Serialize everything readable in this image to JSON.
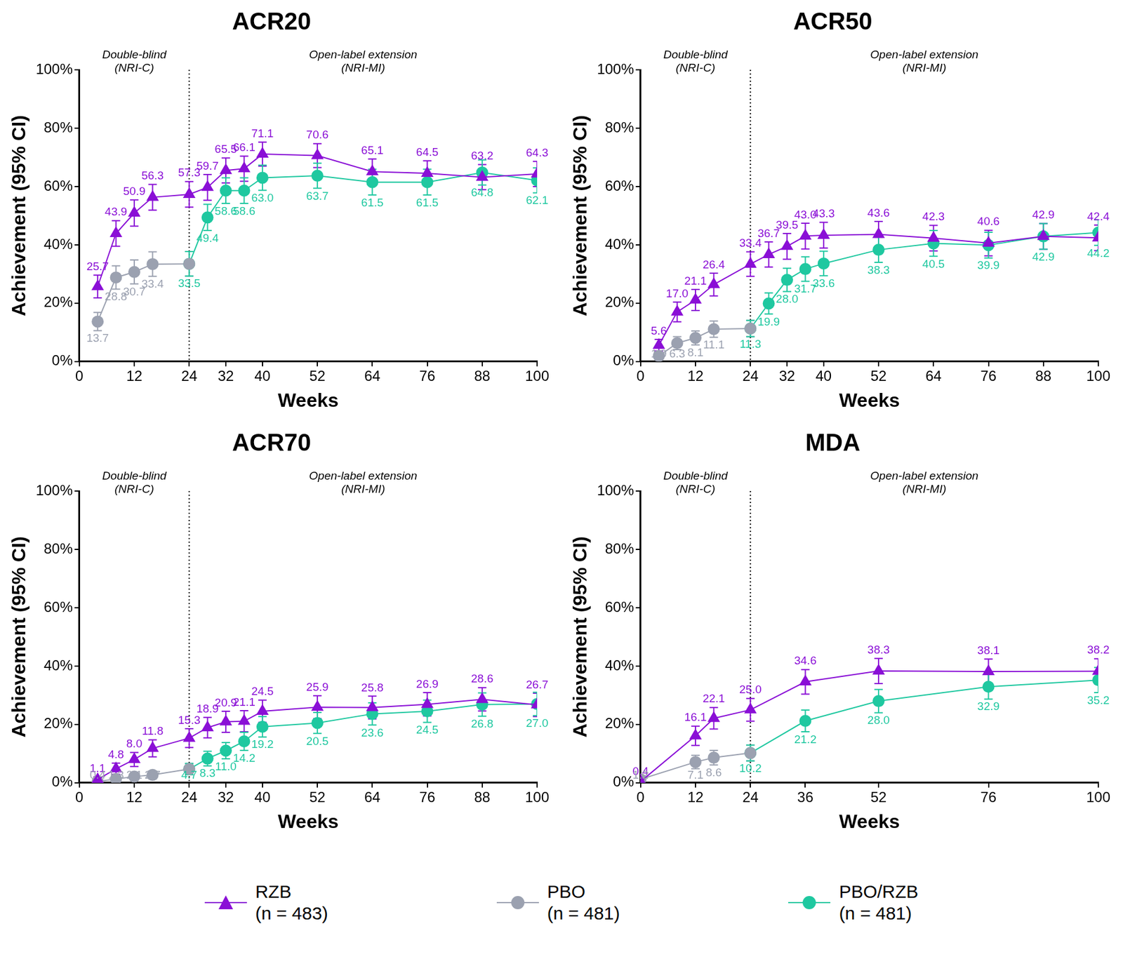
{
  "chart_data": [
    {
      "type": "line",
      "title": "ACR20",
      "x_label": "Weeks",
      "y_label": "Achievement (95% CI)",
      "xlim": [
        0,
        100
      ],
      "xticks": [
        0,
        12,
        24,
        32,
        40,
        52,
        64,
        76,
        88,
        100
      ],
      "ylim": [
        0,
        100
      ],
      "yticks": [
        {
          "value": 0,
          "label": "0%"
        },
        {
          "value": 20,
          "label": "20%"
        },
        {
          "value": 40,
          "label": "40%"
        },
        {
          "value": 60,
          "label": "60%"
        },
        {
          "value": 80,
          "label": "80%"
        },
        {
          "value": 100,
          "label": "100%"
        }
      ],
      "grid": false,
      "data_labels": true,
      "legend": "bottom",
      "divider": 24,
      "annotations": [
        {
          "text": "Double-blind",
          "subtext": "(NRI-C)"
        },
        {
          "text": "Open-label extension",
          "subtext": "(NRI-MI)"
        }
      ],
      "x": [
        4,
        8,
        12,
        16,
        24,
        28,
        32,
        36,
        40,
        52,
        64,
        76,
        88,
        100
      ],
      "series": [
        {
          "name": "RZB",
          "note": "(n = 483)",
          "color": "#8a0fd6",
          "marker": "triangle",
          "line_style": "solid",
          "values": [
            25.7,
            43.9,
            50.9,
            56.3,
            57.3,
            59.7,
            65.5,
            66.1,
            71.1,
            70.6,
            65.1,
            64.5,
            63.2,
            64.3
          ],
          "value_labels": [
            "25.7",
            "43.9",
            "50.9",
            "56.3",
            "57.3",
            "59.7",
            "65.5",
            "66.1",
            "71.1",
            "70.6",
            "65.1",
            "64.5",
            "63.2",
            "64.3"
          ],
          "errors": [
            3.9,
            4.4,
            4.5,
            4.4,
            4.4,
            4.4,
            4.3,
            4.3,
            4.1,
            4.1,
            4.3,
            4.3,
            4.3,
            4.3
          ]
        },
        {
          "name": "PBO",
          "note": "(n = 481)",
          "color": "#9ba1b0",
          "marker": "circle",
          "line_style": "solid",
          "values": [
            13.7,
            28.8,
            30.7,
            33.4,
            33.5,
            null,
            null,
            null,
            null,
            null,
            null,
            null,
            null,
            null
          ],
          "value_labels": [
            "13.7",
            "28.8",
            "30.7",
            "33.4",
            null,
            null,
            null,
            null,
            null,
            null,
            null,
            null,
            null,
            null
          ],
          "errors": [
            3.1,
            4.0,
            4.1,
            4.2,
            4.2,
            null,
            null,
            null,
            null,
            null,
            null,
            null,
            null,
            null
          ]
        },
        {
          "name": "PBO/RZB",
          "note": "(n = 481)",
          "color": "#1fc8a0",
          "marker": "circle",
          "line_style": "solid",
          "values": [
            null,
            null,
            null,
            null,
            33.5,
            49.4,
            58.6,
            58.6,
            63.0,
            63.7,
            61.5,
            61.5,
            64.8,
            62.1
          ],
          "value_labels": [
            null,
            null,
            null,
            null,
            "33.5",
            "49.4",
            "58.6",
            "58.6",
            "63.0",
            "63.7",
            "61.5",
            "61.5",
            "64.8",
            "62.1"
          ],
          "errors": [
            null,
            null,
            null,
            null,
            4.2,
            4.5,
            4.4,
            4.4,
            4.3,
            4.3,
            4.4,
            4.4,
            4.3,
            4.3
          ]
        }
      ]
    },
    {
      "type": "line",
      "title": "ACR50",
      "x_label": "Weeks",
      "y_label": "Achievement (95% CI)",
      "xlim": [
        0,
        100
      ],
      "xticks": [
        0,
        12,
        24,
        32,
        40,
        52,
        64,
        76,
        88,
        100
      ],
      "ylim": [
        0,
        100
      ],
      "yticks": [
        {
          "value": 0,
          "label": "0%"
        },
        {
          "value": 20,
          "label": "20%"
        },
        {
          "value": 40,
          "label": "40%"
        },
        {
          "value": 60,
          "label": "60%"
        },
        {
          "value": 80,
          "label": "80%"
        },
        {
          "value": 100,
          "label": "100%"
        }
      ],
      "grid": false,
      "data_labels": true,
      "legend": "bottom",
      "divider": 24,
      "annotations": [
        {
          "text": "Double-blind",
          "subtext": "(NRI-C)"
        },
        {
          "text": "Open-label extension",
          "subtext": "(NRI-MI)"
        }
      ],
      "x": [
        4,
        8,
        12,
        16,
        24,
        28,
        32,
        36,
        40,
        52,
        64,
        76,
        88,
        100
      ],
      "series": [
        {
          "name": "RZB",
          "note": "(n = 483)",
          "color": "#8a0fd6",
          "marker": "triangle",
          "line_style": "solid",
          "values": [
            5.6,
            17.0,
            21.1,
            26.4,
            33.4,
            36.7,
            39.5,
            43.0,
            43.3,
            43.6,
            42.3,
            40.6,
            42.9,
            42.4
          ],
          "value_labels": [
            "5.6",
            "17.0",
            "21.1",
            "26.4",
            "33.4",
            "36.7",
            "39.5",
            "43.0",
            "43.3",
            "43.6",
            "42.3",
            "40.6",
            "42.9",
            "42.4"
          ],
          "errors": [
            2.0,
            3.4,
            3.6,
            3.9,
            4.2,
            4.3,
            4.4,
            4.4,
            4.4,
            4.4,
            4.4,
            4.4,
            4.4,
            4.4
          ]
        },
        {
          "name": "PBO",
          "note": "(n = 481)",
          "color": "#9ba1b0",
          "marker": "circle",
          "line_style": "solid",
          "values": [
            1.9,
            6.3,
            8.1,
            11.1,
            11.3,
            null,
            null,
            null,
            null,
            null,
            null,
            null,
            null,
            null
          ],
          "value_labels": [
            "1.9",
            "6.3",
            "8.1",
            "11.1",
            null,
            null,
            null,
            null,
            null,
            null,
            null,
            null,
            null,
            null
          ],
          "errors": [
            1.2,
            2.2,
            2.4,
            2.8,
            2.8,
            null,
            null,
            null,
            null,
            null,
            null,
            null,
            null,
            null
          ]
        },
        {
          "name": "PBO/RZB",
          "note": "(n = 481)",
          "color": "#1fc8a0",
          "marker": "circle",
          "line_style": "solid",
          "values": [
            null,
            null,
            null,
            null,
            11.3,
            19.9,
            28.0,
            31.7,
            33.6,
            38.3,
            40.5,
            39.9,
            42.9,
            44.2
          ],
          "value_labels": [
            null,
            null,
            null,
            null,
            "11.3",
            "19.9",
            "28.0",
            "31.7",
            "33.6",
            "38.3",
            "40.5",
            "39.9",
            "42.9",
            "44.2"
          ],
          "errors": [
            null,
            null,
            null,
            null,
            2.8,
            3.6,
            4.0,
            4.2,
            4.2,
            4.3,
            4.4,
            4.4,
            4.4,
            4.4
          ]
        }
      ]
    },
    {
      "type": "line",
      "title": "ACR70",
      "x_label": "Weeks",
      "y_label": "Achievement (95% CI)",
      "xlim": [
        0,
        100
      ],
      "xticks": [
        0,
        12,
        24,
        32,
        40,
        52,
        64,
        76,
        88,
        100
      ],
      "ylim": [
        0,
        100
      ],
      "yticks": [
        {
          "value": 0,
          "label": "0%"
        },
        {
          "value": 20,
          "label": "20%"
        },
        {
          "value": 40,
          "label": "40%"
        },
        {
          "value": 60,
          "label": "60%"
        },
        {
          "value": 80,
          "label": "80%"
        },
        {
          "value": 100,
          "label": "100%"
        }
      ],
      "grid": false,
      "data_labels": true,
      "legend": "bottom",
      "divider": 24,
      "annotations": [
        {
          "text": "Double-blind",
          "subtext": "(NRI-C)"
        },
        {
          "text": "Open-label extension",
          "subtext": "(NRI-MI)"
        }
      ],
      "x": [
        4,
        8,
        12,
        16,
        24,
        28,
        32,
        36,
        40,
        52,
        64,
        76,
        88,
        100
      ],
      "series": [
        {
          "name": "RZB",
          "note": "(n = 483)",
          "color": "#8a0fd6",
          "marker": "triangle",
          "line_style": "solid",
          "values": [
            1.1,
            4.8,
            8.0,
            11.8,
            15.3,
            18.9,
            20.9,
            21.1,
            24.5,
            25.9,
            25.8,
            26.9,
            28.6,
            26.7
          ],
          "value_labels": [
            "1.1",
            "4.8",
            "8.0",
            "11.8",
            "15.3",
            "18.9",
            "20.9",
            "21.1",
            "24.5",
            "25.9",
            "25.8",
            "26.9",
            "28.6",
            "26.7"
          ],
          "errors": [
            0.9,
            1.9,
            2.4,
            2.9,
            3.2,
            3.5,
            3.6,
            3.6,
            3.8,
            3.9,
            3.9,
            4.0,
            4.0,
            4.0
          ]
        },
        {
          "name": "PBO",
          "note": "(n = 481)",
          "color": "#9ba1b0",
          "marker": "circle",
          "line_style": "solid",
          "values": [
            0.4,
            1.3,
            2.1,
            2.7,
            4.7,
            null,
            null,
            null,
            null,
            null,
            null,
            null,
            null,
            null
          ],
          "value_labels": [
            "0.4",
            "1.3",
            "2.1",
            "2.7",
            null,
            null,
            null,
            null,
            null,
            null,
            null,
            null,
            null,
            null
          ],
          "errors": [
            0.6,
            1.0,
            1.3,
            1.4,
            1.9,
            null,
            null,
            null,
            null,
            null,
            null,
            null,
            null,
            null
          ]
        },
        {
          "name": "PBO/RZB",
          "note": "(n = 481)",
          "color": "#1fc8a0",
          "marker": "circle",
          "line_style": "solid",
          "values": [
            null,
            null,
            null,
            null,
            4.7,
            8.3,
            11.0,
            14.2,
            19.2,
            20.5,
            23.6,
            24.5,
            26.8,
            27.0
          ],
          "value_labels": [
            null,
            null,
            null,
            null,
            "4.7",
            "8.3",
            "11.0",
            "14.2",
            "19.2",
            "20.5",
            "23.6",
            "24.5",
            "26.8",
            "27.0"
          ],
          "errors": [
            null,
            null,
            null,
            null,
            1.9,
            2.5,
            2.8,
            3.1,
            3.5,
            3.6,
            3.8,
            3.8,
            4.0,
            4.0
          ]
        }
      ]
    },
    {
      "type": "line",
      "title": "MDA",
      "x_label": "Weeks",
      "y_label": "Achievement (95% CI)",
      "xlim": [
        0,
        100
      ],
      "xticks": [
        0,
        12,
        24,
        36,
        52,
        76,
        100
      ],
      "ylim": [
        0,
        100
      ],
      "yticks": [
        {
          "value": 0,
          "label": "0%"
        },
        {
          "value": 20,
          "label": "20%"
        },
        {
          "value": 40,
          "label": "40%"
        },
        {
          "value": 60,
          "label": "60%"
        },
        {
          "value": 80,
          "label": "80%"
        },
        {
          "value": 100,
          "label": "100%"
        }
      ],
      "grid": false,
      "data_labels": true,
      "legend": "bottom",
      "divider": 24,
      "annotations": [
        {
          "text": "Double-blind",
          "subtext": "(NRI-C)"
        },
        {
          "text": "Open-label extension",
          "subtext": "(NRI-MI)"
        }
      ],
      "x": [
        0,
        12,
        16,
        24,
        36,
        52,
        76,
        100
      ],
      "series": [
        {
          "name": "RZB",
          "note": "(n = 483)",
          "color": "#8a0fd6",
          "marker": "triangle",
          "line_style": "solid",
          "values": [
            0.4,
            16.1,
            22.1,
            25.0,
            34.6,
            38.3,
            38.1,
            38.2
          ],
          "value_labels": [
            "0.4",
            "16.1",
            "22.1",
            "25.0",
            "34.6",
            "38.3",
            "38.1",
            "38.2"
          ],
          "errors": [
            0.6,
            3.3,
            3.7,
            3.9,
            4.2,
            4.3,
            4.3,
            4.3
          ]
        },
        {
          "name": "PBO",
          "note": "(n = 481)",
          "color": "#9ba1b0",
          "marker": "circle",
          "line_style": "solid",
          "values": [
            1.2,
            7.1,
            8.6,
            10.2,
            null,
            null,
            null,
            null
          ],
          "value_labels": [
            "1.2",
            "7.1",
            "8.6",
            null,
            null,
            null,
            null,
            null
          ],
          "errors": [
            1.0,
            2.3,
            2.5,
            2.7,
            null,
            null,
            null,
            null
          ]
        },
        {
          "name": "PBO/RZB",
          "note": "(n = 481)",
          "color": "#1fc8a0",
          "marker": "circle",
          "line_style": "solid",
          "values": [
            null,
            null,
            null,
            10.2,
            21.2,
            28.0,
            32.9,
            35.2
          ],
          "value_labels": [
            null,
            null,
            null,
            "10.2",
            "21.2",
            "28.0",
            "32.9",
            "35.2"
          ],
          "errors": [
            null,
            null,
            null,
            2.7,
            3.7,
            4.0,
            4.2,
            4.3
          ]
        }
      ]
    }
  ]
}
